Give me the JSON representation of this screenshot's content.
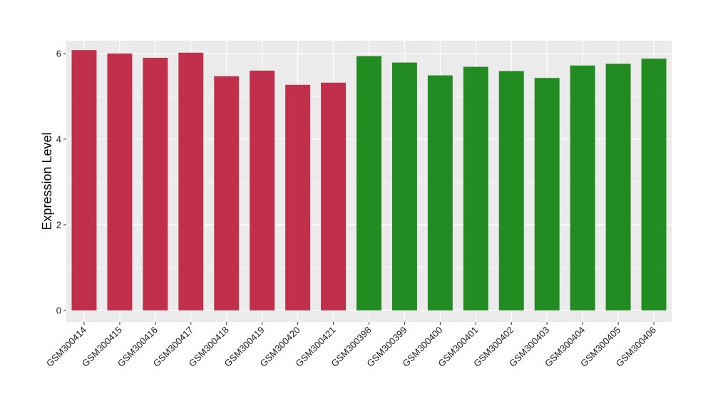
{
  "chart_data": {
    "type": "bar",
    "title": "",
    "xlabel": "",
    "ylabel": "Expression Level",
    "ylim": [
      -0.27,
      6.3
    ],
    "yticks": [
      0,
      2,
      4,
      6
    ],
    "grid": true,
    "categories": [
      "GSM300414",
      "GSM300415",
      "GSM300416",
      "GSM300417",
      "GSM300418",
      "GSM300419",
      "GSM300420",
      "GSM300421",
      "GSM300398",
      "GSM300399",
      "GSM300400",
      "GSM300401",
      "GSM300402",
      "GSM300403",
      "GSM300404",
      "GSM300405",
      "GSM300406"
    ],
    "values": [
      6.08,
      6.0,
      5.9,
      6.02,
      5.47,
      5.6,
      5.27,
      5.32,
      5.94,
      5.79,
      5.49,
      5.69,
      5.59,
      5.43,
      5.72,
      5.76,
      5.88
    ],
    "colors": [
      "#C0304A",
      "#C0304A",
      "#C0304A",
      "#C0304A",
      "#C0304A",
      "#C0304A",
      "#C0304A",
      "#C0304A",
      "#228B22",
      "#228B22",
      "#228B22",
      "#228B22",
      "#228B22",
      "#228B22",
      "#228B22",
      "#228B22",
      "#228B22"
    ],
    "panel_background": "#EBEBEB",
    "grid_color": "#FFFFFF"
  }
}
